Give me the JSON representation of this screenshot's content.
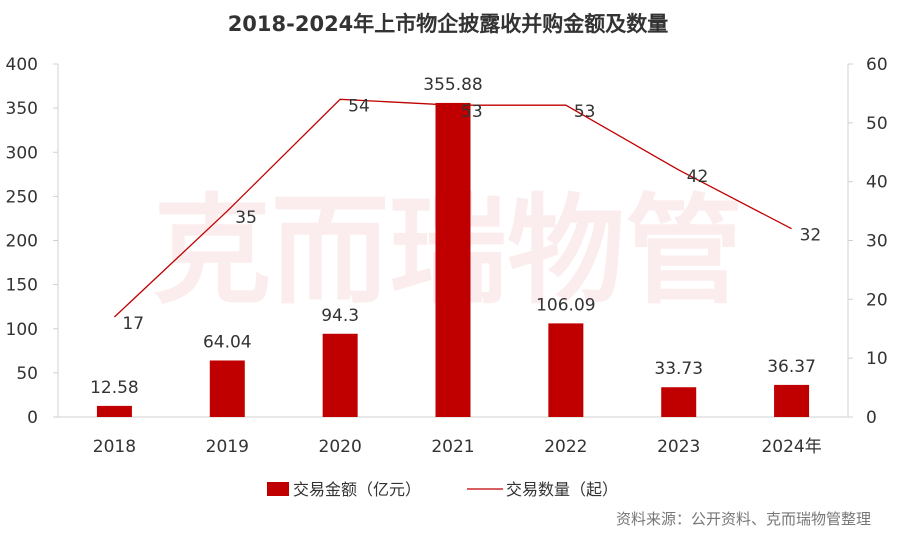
{
  "chart_data": {
    "type": "bar",
    "title": "2018-2024年上市物企披露收并购金额及数量",
    "categories": [
      "2018",
      "2019",
      "2020",
      "2021",
      "2022",
      "2023",
      "2024年"
    ],
    "series": [
      {
        "name": "交易金额（亿元）",
        "type": "bar",
        "axis": "left",
        "color": "#c00000",
        "values": [
          12.58,
          64.04,
          94.3,
          355.88,
          106.09,
          33.73,
          36.37
        ],
        "labels": [
          "12.58",
          "64.04",
          "94.3",
          "355.88",
          "106.09",
          "33.73",
          "36.37"
        ]
      },
      {
        "name": "交易数量（起）",
        "type": "line",
        "axis": "right",
        "color": "#c00000",
        "values": [
          17,
          35,
          54,
          53,
          53,
          42,
          32
        ],
        "labels": [
          "17",
          "35",
          "54",
          "53",
          "53",
          "42",
          "32"
        ]
      }
    ],
    "y_left": {
      "range": [
        0,
        400
      ],
      "ticks": [
        "0",
        "50",
        "100",
        "150",
        "200",
        "250",
        "300",
        "350",
        "400"
      ]
    },
    "y_right": {
      "range": [
        0,
        60
      ],
      "ticks": [
        "0",
        "10",
        "20",
        "30",
        "40",
        "50",
        "60"
      ]
    },
    "grid": false,
    "legend": "bottom"
  },
  "watermark": "克而瑞物管",
  "source": "资料来源：公开资料、克而瑞物管整理"
}
